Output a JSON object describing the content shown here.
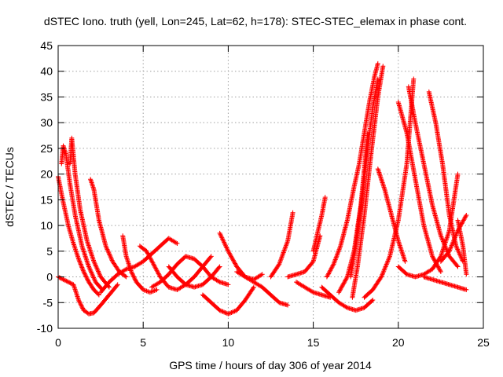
{
  "chart_data": {
    "type": "scatter",
    "title": "dSTEC Iono. truth (yell, Lon=245, Lat=62, h=178): STEC-STEC_elemax in phase cont.",
    "xlabel": "GPS time / hours of day 306 of year 2014",
    "ylabel": "dSTEC  / TECUs",
    "xlim": [
      0,
      25
    ],
    "ylim": [
      -10,
      45
    ],
    "x_ticks": [
      0,
      5,
      10,
      15,
      20,
      25
    ],
    "y_ticks": [
      -10,
      -5,
      0,
      5,
      10,
      15,
      20,
      25,
      30,
      35,
      40,
      45
    ],
    "x_tick_labels": [
      "0",
      "5",
      "10",
      "15",
      "20",
      "25"
    ],
    "y_tick_labels": [
      "-10",
      "-5",
      "0",
      "5",
      "10",
      "15",
      "20",
      "25",
      "30",
      "35",
      "40",
      "45"
    ],
    "grid": true,
    "marker": "plus",
    "color": "#ff0000",
    "arcs": [
      {
        "x": [
          0.0,
          0.3,
          0.6,
          0.9,
          1.2,
          1.5,
          1.8,
          2.1,
          2.4
        ],
        "y": [
          19.5,
          14.5,
          10.0,
          6.5,
          3.5,
          1.0,
          -1.0,
          -2.5,
          -3.5
        ]
      },
      {
        "x": [
          0.2,
          0.3,
          0.45,
          0.7,
          1.0,
          1.4,
          1.8,
          2.2,
          2.6
        ],
        "y": [
          22,
          25.5,
          24,
          18,
          12,
          6,
          2,
          -1,
          -2.5
        ]
      },
      {
        "x": [
          0.7,
          0.8,
          1.0,
          1.3,
          1.7,
          2.1,
          2.5,
          3.0
        ],
        "y": [
          22,
          27,
          20,
          13,
          7,
          3,
          0,
          -2
        ]
      },
      {
        "x": [
          0.0,
          0.3,
          0.6,
          0.9,
          1.2,
          1.5,
          1.8,
          2.1,
          2.5,
          3.0,
          3.5
        ],
        "y": [
          0,
          -0.5,
          -1.0,
          -1.5,
          -4.5,
          -6.5,
          -7.2,
          -7.0,
          -5.5,
          -3.5,
          -1.5
        ]
      },
      {
        "x": [
          1.9,
          2.1,
          2.4,
          2.8,
          3.2,
          3.6,
          4.0
        ],
        "y": [
          19,
          17,
          11,
          6,
          3,
          1,
          0
        ]
      },
      {
        "x": [
          3.8,
          4.0,
          4.3,
          4.6,
          5.0,
          5.4,
          5.8
        ],
        "y": [
          8,
          4,
          1,
          -1,
          -2.5,
          -3,
          -2.5
        ]
      },
      {
        "x": [
          2.5,
          3.0,
          3.5,
          4.0,
          4.5,
          5.0,
          5.5,
          6.0,
          6.5,
          7.0
        ],
        "y": [
          -3.0,
          -1.0,
          0.5,
          1.5,
          2.0,
          3.0,
          4.5,
          6.0,
          7.5,
          6.5
        ]
      },
      {
        "x": [
          4.8,
          5.2,
          5.6,
          6.0,
          6.5,
          7.0,
          7.5,
          8.0,
          8.5,
          9.0
        ],
        "y": [
          6.0,
          5.0,
          2.5,
          0.0,
          -2.0,
          -2.5,
          -1.5,
          0.0,
          2.0,
          4.0
        ]
      },
      {
        "x": [
          5.5,
          6.0,
          6.5,
          7.0,
          7.5,
          8.0,
          8.5,
          9.0,
          9.5,
          10.0
        ],
        "y": [
          -2.0,
          -1.0,
          0.5,
          2.5,
          4.0,
          3.5,
          2.0,
          0.0,
          -1.0,
          -1.5
        ]
      },
      {
        "x": [
          6.5,
          7.0,
          7.5,
          8.0,
          8.5,
          9.0,
          9.5
        ],
        "y": [
          2.0,
          0.0,
          -1.5,
          -2.0,
          -1.5,
          0.0,
          2.0
        ]
      },
      {
        "x": [
          8.5,
          9.0,
          9.5,
          10.0,
          10.5,
          11.0,
          11.5
        ],
        "y": [
          -3.5,
          -5.0,
          -6.5,
          -7.2,
          -6.5,
          -4.5,
          -2.0
        ]
      },
      {
        "x": [
          9.5,
          10.0,
          10.5,
          11.0,
          11.5,
          12.0
        ],
        "y": [
          8.5,
          5.0,
          2.0,
          0.0,
          -0.5,
          0.5
        ]
      },
      {
        "x": [
          10.5,
          11.0,
          11.5,
          12.0,
          12.5,
          13.0,
          13.5
        ],
        "y": [
          1.0,
          0.0,
          -1.0,
          -2.0,
          -3.5,
          -5.0,
          -5.5
        ]
      },
      {
        "x": [
          12.5,
          13.0,
          13.5,
          13.8
        ],
        "y": [
          0.0,
          2.5,
          7.0,
          12.5
        ]
      },
      {
        "x": [
          13.5,
          14.0,
          14.5,
          15.0,
          15.4
        ],
        "y": [
          0.0,
          0.5,
          1.0,
          3.0,
          8.0
        ]
      },
      {
        "x": [
          14.0,
          14.5,
          15.0,
          15.5,
          16.0
        ],
        "y": [
          -1.0,
          -2.0,
          -3.0,
          -3.5,
          -4.0
        ]
      },
      {
        "x": [
          15.0,
          15.5,
          15.7
        ],
        "y": [
          5.0,
          12.0,
          15.5
        ]
      },
      {
        "x": [
          15.5,
          16.0,
          16.5,
          17.0,
          17.5,
          18.0,
          18.5
        ],
        "y": [
          -2.0,
          -3.5,
          -5.0,
          -6.0,
          -6.5,
          -6.0,
          -4.5
        ]
      },
      {
        "x": [
          15.8,
          16.2,
          16.6,
          17.0,
          17.4,
          17.7,
          18.0,
          18.3,
          18.6,
          18.8
        ],
        "y": [
          0.0,
          2.5,
          6.0,
          11.0,
          17.5,
          22.0,
          28.0,
          34.0,
          39.0,
          41.5
        ]
      },
      {
        "x": [
          16.5,
          17.0,
          17.4,
          17.8,
          18.2
        ],
        "y": [
          -3.0,
          0.0,
          5.0,
          14.0,
          28.0
        ]
      },
      {
        "x": [
          17.2,
          17.5,
          17.9,
          18.2,
          18.5,
          18.8
        ],
        "y": [
          0.0,
          6.0,
          16.0,
          25.0,
          33.0,
          38.5
        ]
      },
      {
        "x": [
          17.3,
          17.6,
          18.0,
          18.4,
          18.8,
          19.1
        ],
        "y": [
          -4.0,
          2.0,
          12.0,
          24.0,
          35.0,
          41.0
        ]
      },
      {
        "x": [
          18.8,
          19.2,
          19.6,
          20.0,
          20.4
        ],
        "y": [
          21.0,
          17.0,
          12.0,
          7.0,
          3.0
        ]
      },
      {
        "x": [
          18.0,
          18.5,
          19.0,
          19.5,
          20.0,
          20.5,
          20.9
        ],
        "y": [
          -4.0,
          -2.5,
          0.0,
          4.0,
          11.0,
          22.0,
          38.5
        ]
      },
      {
        "x": [
          20.0,
          20.5,
          21.0,
          21.5,
          22.0,
          22.5
        ],
        "y": [
          34.0,
          28.0,
          19.0,
          10.0,
          4.0,
          1.0
        ]
      },
      {
        "x": [
          20.6,
          21.0,
          21.5,
          22.0,
          22.5,
          23.0,
          23.5
        ],
        "y": [
          37.0,
          30.0,
          22.0,
          14.0,
          8.0,
          4.0,
          2.0
        ]
      },
      {
        "x": [
          21.8,
          22.2,
          22.6,
          23.0,
          23.4,
          23.8
        ],
        "y": [
          36.0,
          30.0,
          22.0,
          12.0,
          6.0,
          3.0
        ]
      },
      {
        "x": [
          20.0,
          20.5,
          21.0,
          21.5,
          22.0,
          22.5,
          23.0,
          23.5
        ],
        "y": [
          2.0,
          0.5,
          0.0,
          0.5,
          1.5,
          4.0,
          9.0,
          20.0
        ]
      },
      {
        "x": [
          22.5,
          23.0,
          23.5,
          24.0
        ],
        "y": [
          3.0,
          5.0,
          9.0,
          12.0
        ]
      },
      {
        "x": [
          23.5,
          23.8,
          24.0
        ],
        "y": [
          11.0,
          6.0,
          0.5
        ]
      },
      {
        "x": [
          21.5,
          22.0,
          22.5,
          23.0,
          23.5,
          24.0
        ],
        "y": [
          0.0,
          -0.5,
          -1.0,
          -1.5,
          -2.0,
          -2.5
        ]
      }
    ]
  }
}
